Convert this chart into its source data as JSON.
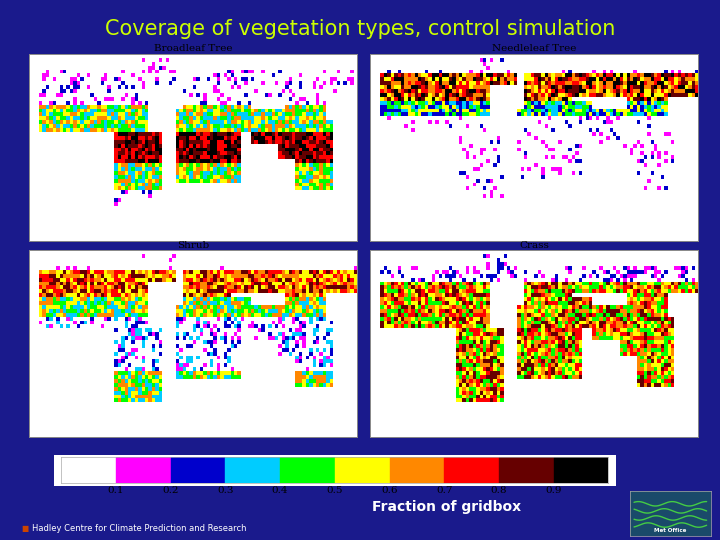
{
  "title": "Coverage of vegetation types, control simulation",
  "title_color": "#ccff00",
  "title_fontsize": 15,
  "background_color": "#1a1a8c",
  "subplot_titles": [
    "Broadleaf Tree",
    "Needleleaf Tree",
    "Shrub",
    "Crass"
  ],
  "colorbar_colors": [
    "#ffffff",
    "#ff00ff",
    "#0000cc",
    "#00ccff",
    "#00ff00",
    "#ffff00",
    "#ff8800",
    "#ff0000",
    "#660000",
    "#000000"
  ],
  "colorbar_labels": [
    "0.1",
    "0.2",
    "0.3",
    "0.4",
    "0.5",
    "0.6",
    "0.7",
    "0.8",
    "0.9"
  ],
  "colorbar_label_text": "Fraction of gridbox",
  "footer_text": "Hadley Centre for Climate Prediction and Research",
  "map_bg": "#ffffff",
  "panel_outer_bg": "#ffffff"
}
